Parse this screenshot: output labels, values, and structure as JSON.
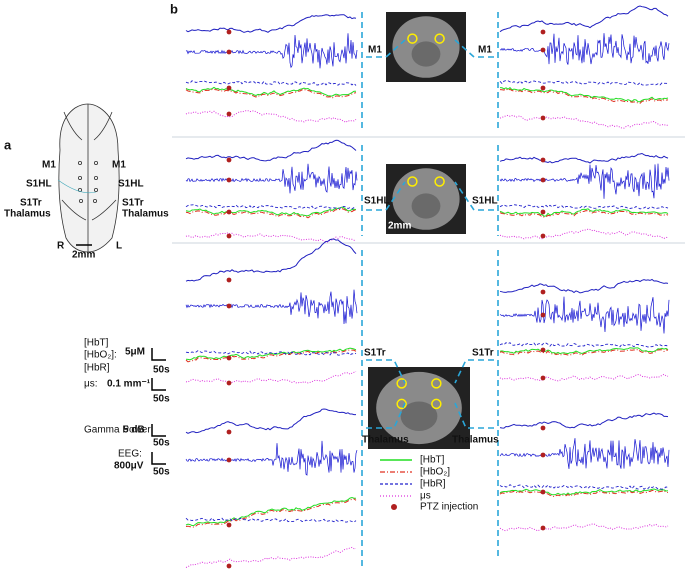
{
  "panel_a": {
    "label": "a",
    "regions_left": [
      "M1",
      "S1HL",
      "S1Tr",
      "Thalamus"
    ],
    "regions_right": [
      "M1",
      "S1HL",
      "S1Tr",
      "Thalamus"
    ],
    "orientation": [
      "R",
      "L"
    ],
    "scale": "2mm"
  },
  "scale_bars": {
    "hemo_labels": [
      "[HbT]",
      "[HbO₂]:",
      "[HbR]"
    ],
    "hemo_value": "5μM",
    "hemo_time": "50s",
    "mus_label": "μs:",
    "mus_value": "0.1 mm⁻¹",
    "mus_time": "50s",
    "gamma_label": "Gamma Power:",
    "gamma_value": "5 dB",
    "gamma_time": "50s",
    "eeg_label": "EEG:",
    "eeg_value": "800μV",
    "eeg_time": "50s"
  },
  "panel_b": {
    "label": "b",
    "rows": [
      {
        "left": "M1",
        "right": "M1"
      },
      {
        "left": "S1HL",
        "right": "S1HL"
      },
      {
        "left": "S1Tr",
        "right": "S1Tr"
      },
      {
        "left": "Thalamus",
        "right": "Thalamus"
      }
    ],
    "mri_scale": "2mm",
    "legend": [
      "[HbT]",
      "[HbO₂]",
      "[HbR]",
      "μs",
      "PTZ injection"
    ]
  }
}
